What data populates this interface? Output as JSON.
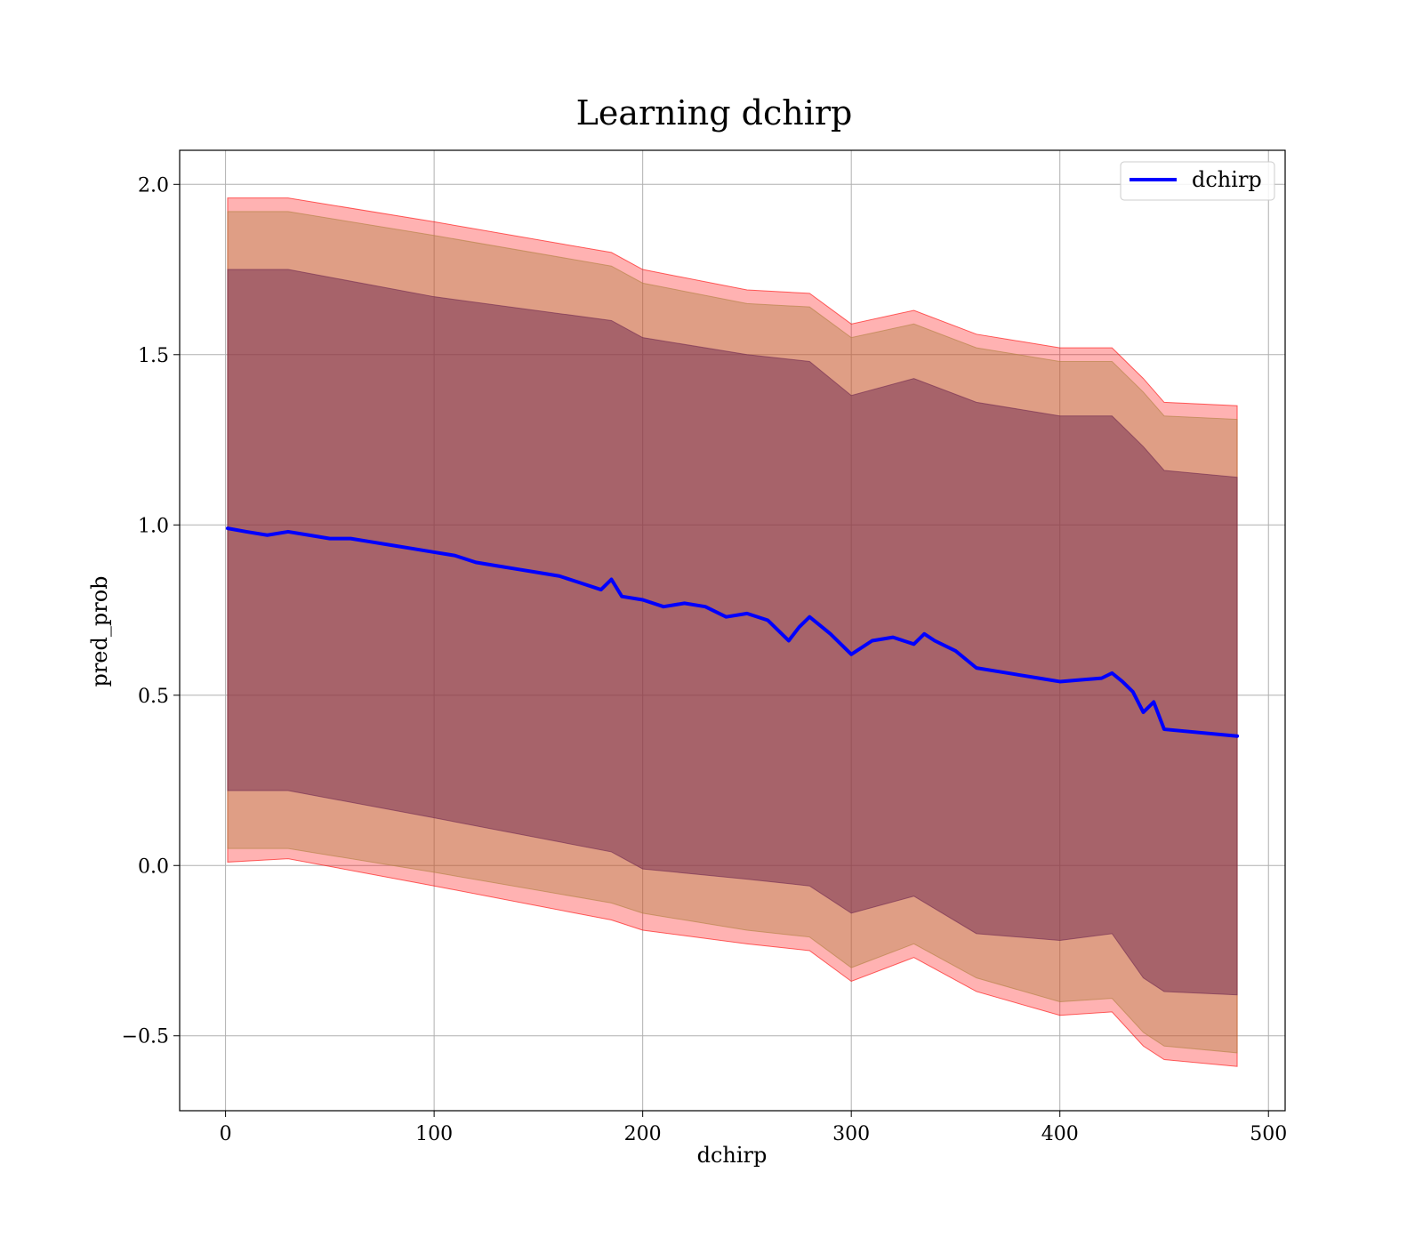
{
  "chart_data": {
    "type": "line",
    "title": "Learning dchirp",
    "xlabel": "dchirp",
    "ylabel": "pred_prob",
    "xlim": [
      -22,
      508
    ],
    "ylim": [
      -0.72,
      2.1
    ],
    "x_ticks": [
      0,
      100,
      200,
      300,
      400,
      500
    ],
    "x_tick_labels": [
      "0",
      "100",
      "200",
      "300",
      "400",
      "500"
    ],
    "y_ticks": [
      -0.5,
      0.0,
      0.5,
      1.0,
      1.5,
      2.0
    ],
    "y_tick_labels": [
      "−0.5",
      "0.0",
      "0.5",
      "1.0",
      "1.5",
      "2.0"
    ],
    "grid": true,
    "legend": {
      "position": "top-right",
      "entries": [
        "dchirp"
      ]
    },
    "series": [
      {
        "name": "dchirp",
        "color": "#0000ff",
        "x": [
          1,
          10,
          20,
          30,
          40,
          50,
          60,
          70,
          80,
          90,
          100,
          110,
          120,
          130,
          140,
          150,
          160,
          170,
          180,
          185,
          190,
          200,
          210,
          220,
          230,
          240,
          250,
          260,
          270,
          275,
          280,
          290,
          300,
          310,
          320,
          330,
          335,
          340,
          350,
          360,
          370,
          380,
          390,
          400,
          410,
          420,
          425,
          430,
          435,
          440,
          445,
          450,
          485
        ],
        "y": [
          0.99,
          0.98,
          0.97,
          0.98,
          0.97,
          0.96,
          0.96,
          0.95,
          0.94,
          0.93,
          0.92,
          0.91,
          0.89,
          0.88,
          0.87,
          0.86,
          0.85,
          0.83,
          0.81,
          0.84,
          0.79,
          0.78,
          0.76,
          0.77,
          0.76,
          0.73,
          0.74,
          0.72,
          0.66,
          0.7,
          0.73,
          0.68,
          0.62,
          0.66,
          0.67,
          0.65,
          0.68,
          0.66,
          0.63,
          0.58,
          0.57,
          0.56,
          0.55,
          0.54,
          0.545,
          0.55,
          0.565,
          0.54,
          0.51,
          0.45,
          0.48,
          0.4,
          0.38
        ]
      }
    ],
    "bands": [
      {
        "role": "outer-band",
        "color": "#ff0000",
        "opacity": 0.3,
        "x": [
          1,
          30,
          100,
          185,
          200,
          250,
          280,
          300,
          330,
          360,
          400,
          425,
          440,
          450,
          485
        ],
        "lower": [
          0.01,
          0.02,
          -0.06,
          -0.16,
          -0.19,
          -0.23,
          -0.25,
          -0.34,
          -0.27,
          -0.37,
          -0.44,
          -0.43,
          -0.53,
          -0.57,
          -0.59
        ],
        "upper": [
          1.96,
          1.96,
          1.89,
          1.8,
          1.75,
          1.69,
          1.68,
          1.59,
          1.63,
          1.56,
          1.52,
          1.52,
          1.43,
          1.36,
          1.35
        ]
      },
      {
        "role": "middle-band",
        "color": "#b08040",
        "opacity": 0.4,
        "x": [
          1,
          30,
          100,
          185,
          200,
          250,
          280,
          300,
          330,
          360,
          400,
          425,
          440,
          450,
          485
        ],
        "lower": [
          0.05,
          0.05,
          -0.02,
          -0.11,
          -0.14,
          -0.19,
          -0.21,
          -0.3,
          -0.23,
          -0.33,
          -0.4,
          -0.39,
          -0.49,
          -0.53,
          -0.55
        ],
        "upper": [
          1.92,
          1.92,
          1.85,
          1.76,
          1.71,
          1.65,
          1.64,
          1.55,
          1.59,
          1.52,
          1.48,
          1.48,
          1.39,
          1.32,
          1.31
        ]
      },
      {
        "role": "inner-band",
        "color": "#702850",
        "opacity": 0.5,
        "x": [
          1,
          30,
          100,
          185,
          200,
          250,
          280,
          300,
          330,
          360,
          400,
          425,
          440,
          450,
          485
        ],
        "lower": [
          0.22,
          0.22,
          0.14,
          0.04,
          -0.01,
          -0.04,
          -0.06,
          -0.14,
          -0.09,
          -0.2,
          -0.22,
          -0.2,
          -0.33,
          -0.37,
          -0.38
        ],
        "upper": [
          1.75,
          1.75,
          1.67,
          1.6,
          1.55,
          1.5,
          1.48,
          1.38,
          1.43,
          1.36,
          1.32,
          1.32,
          1.23,
          1.16,
          1.14
        ]
      }
    ]
  }
}
